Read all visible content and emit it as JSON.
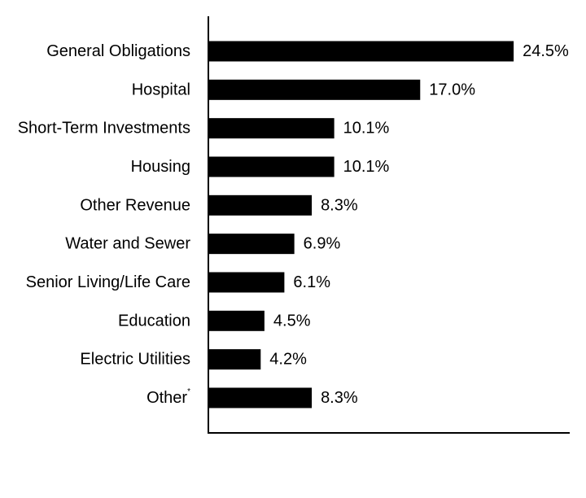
{
  "chart_data": {
    "type": "bar",
    "orientation": "horizontal",
    "title": "",
    "xlabel": "",
    "ylabel": "",
    "categories": [
      "General Obligations",
      "Hospital",
      "Short-Term Investments",
      "Housing",
      "Other Revenue",
      "Water and Sewer",
      "Senior Living/Life Care",
      "Education",
      "Electric Utilities",
      "Other"
    ],
    "category_footnotes": [
      "",
      "",
      "",
      "",
      "",
      "",
      "",
      "",
      "",
      "*"
    ],
    "values": [
      24.5,
      17.0,
      10.1,
      10.1,
      8.3,
      6.9,
      6.1,
      4.5,
      4.2,
      8.3
    ],
    "value_labels": [
      "24.5%",
      "17.0%",
      "10.1%",
      "10.1%",
      "8.3%",
      "6.9%",
      "6.1%",
      "4.5%",
      "4.2%",
      "8.3%"
    ],
    "xlim": [
      0,
      29
    ],
    "bar_color": "#000000",
    "axis_color": "#000000",
    "grid": false,
    "legend": "none"
  }
}
